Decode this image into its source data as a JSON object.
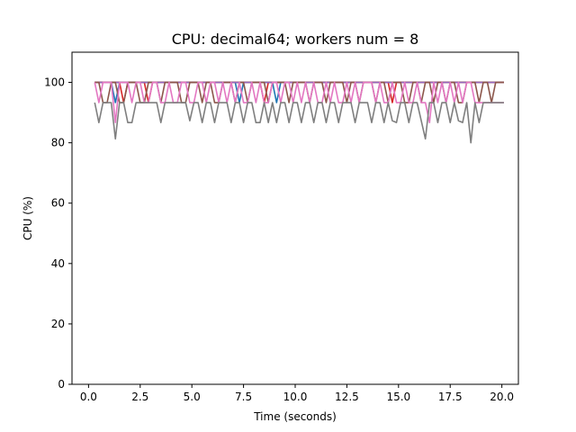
{
  "chart_data": {
    "type": "line",
    "title": "CPU: decimal64; workers num = 8",
    "xlabel": "Time (seconds)",
    "ylabel": "CPU (%)",
    "xlim": [
      -0.8,
      20.8
    ],
    "ylim": [
      0,
      110
    ],
    "xticks": [
      0.0,
      2.5,
      5.0,
      7.5,
      10.0,
      12.5,
      15.0,
      17.5,
      20.0
    ],
    "xtick_labels": [
      "0.0",
      "2.5",
      "5.0",
      "7.5",
      "10.0",
      "12.5",
      "15.0",
      "17.5",
      "20.0"
    ],
    "yticks": [
      0,
      20,
      40,
      60,
      80,
      100
    ],
    "ytick_labels": [
      "0",
      "20",
      "40",
      "60",
      "80",
      "100"
    ],
    "grid": false,
    "legend": "none",
    "x": [
      0.3,
      0.5,
      0.7,
      0.9,
      1.1,
      1.3,
      1.5,
      1.7,
      1.9,
      2.1,
      2.3,
      2.5,
      2.7,
      2.9,
      3.1,
      3.3,
      3.5,
      3.7,
      3.9,
      4.1,
      4.3,
      4.5,
      4.7,
      4.9,
      5.1,
      5.3,
      5.5,
      5.7,
      5.9,
      6.1,
      6.3,
      6.5,
      6.7,
      6.9,
      7.1,
      7.3,
      7.5,
      7.7,
      7.9,
      8.1,
      8.3,
      8.5,
      8.7,
      8.9,
      9.1,
      9.3,
      9.5,
      9.7,
      9.9,
      10.1,
      10.3,
      10.5,
      10.7,
      10.9,
      11.1,
      11.3,
      11.5,
      11.7,
      11.9,
      12.1,
      12.3,
      12.5,
      12.7,
      12.9,
      13.1,
      13.3,
      13.5,
      13.7,
      13.9,
      14.1,
      14.3,
      14.5,
      14.7,
      14.9,
      15.1,
      15.3,
      15.5,
      15.7,
      15.9,
      16.1,
      16.3,
      16.5,
      16.7,
      16.9,
      17.1,
      17.3,
      17.5,
      17.7,
      17.9,
      18.1,
      18.3,
      18.5,
      18.7,
      18.9,
      19.1,
      19.3,
      19.5,
      19.7,
      19.9,
      20.1
    ],
    "series": [
      {
        "color": "#1f77b4",
        "values": [
          100,
          100,
          100,
          100,
          100,
          93.3,
          100,
          100,
          100,
          100,
          100,
          100,
          100,
          100,
          100,
          100,
          100,
          100,
          100,
          100,
          100,
          100,
          100,
          100,
          100,
          100,
          100,
          100,
          100,
          100,
          100,
          100,
          100,
          100,
          100,
          93.3,
          100,
          100,
          100,
          100,
          100,
          100,
          100,
          100,
          93.3,
          100,
          100,
          100,
          100,
          100,
          100,
          100,
          100,
          100,
          100,
          100,
          100,
          100,
          100,
          100,
          100,
          100,
          100,
          100,
          100,
          100,
          100,
          100,
          100,
          100,
          100,
          100,
          100,
          100,
          100,
          100,
          100,
          100,
          100,
          100,
          100,
          100,
          100,
          100,
          100,
          100,
          100,
          100,
          100,
          100,
          100,
          100,
          100,
          100,
          100,
          100,
          100,
          100,
          100,
          100
        ]
      },
      {
        "color": "#ff7f0e",
        "values": [
          100,
          100,
          100,
          100,
          100,
          100,
          100,
          100,
          100,
          100,
          100,
          100,
          100,
          100,
          100,
          100,
          100,
          100,
          100,
          100,
          100,
          100,
          100,
          100,
          100,
          100,
          100,
          100,
          100,
          100,
          100,
          100,
          100,
          100,
          100,
          100,
          100,
          100,
          100,
          100,
          100,
          100,
          100,
          100,
          100,
          100,
          100,
          100,
          100,
          100,
          100,
          100,
          100,
          100,
          100,
          100,
          100,
          100,
          100,
          100,
          100,
          100,
          100,
          100,
          100,
          100,
          100,
          100,
          100,
          100,
          100,
          100,
          100,
          100,
          100,
          100,
          100,
          100,
          100,
          100,
          100,
          100,
          100,
          100,
          100,
          100,
          100,
          100,
          100,
          100,
          100,
          100,
          100,
          100,
          100,
          100,
          100,
          100,
          100,
          100
        ]
      },
      {
        "color": "#2ca02c",
        "values": [
          100,
          100,
          100,
          100,
          100,
          100,
          100,
          100,
          100,
          100,
          100,
          100,
          100,
          100,
          100,
          100,
          100,
          100,
          100,
          100,
          100,
          100,
          100,
          100,
          100,
          100,
          100,
          100,
          100,
          100,
          100,
          100,
          100,
          100,
          100,
          100,
          100,
          100,
          100,
          100,
          100,
          100,
          100,
          100,
          100,
          100,
          100,
          100,
          100,
          100,
          100,
          100,
          100,
          100,
          100,
          100,
          100,
          100,
          100,
          100,
          100,
          100,
          100,
          100,
          100,
          100,
          100,
          100,
          100,
          100,
          100,
          100,
          100,
          100,
          100,
          100,
          100,
          100,
          100,
          100,
          100,
          100,
          100,
          100,
          100,
          100,
          100,
          100,
          100,
          100,
          100,
          100,
          100,
          100,
          100,
          100,
          100,
          100,
          100,
          100
        ]
      },
      {
        "color": "#d62728",
        "values": [
          100,
          100,
          100,
          100,
          100,
          100,
          100,
          93.3,
          100,
          100,
          100,
          100,
          100,
          93.3,
          100,
          100,
          100,
          100,
          100,
          100,
          100,
          100,
          100,
          100,
          100,
          100,
          100,
          100,
          100,
          100,
          100,
          100,
          100,
          100,
          100,
          100,
          100,
          100,
          100,
          100,
          100,
          93.3,
          100,
          100,
          100,
          100,
          100,
          100,
          100,
          100,
          100,
          100,
          100,
          100,
          100,
          100,
          100,
          100,
          100,
          100,
          100,
          100,
          100,
          100,
          100,
          100,
          100,
          100,
          100,
          100,
          100,
          100,
          93.3,
          100,
          100,
          100,
          100,
          100,
          100,
          100,
          100,
          100,
          100,
          100,
          100,
          100,
          100,
          100,
          100,
          100,
          100,
          100,
          100,
          100,
          100,
          100,
          100,
          100,
          100,
          100
        ]
      },
      {
        "color": "#9467bd",
        "values": [
          100,
          100,
          100,
          100,
          100,
          100,
          100,
          100,
          100,
          100,
          100,
          100,
          100,
          100,
          100,
          100,
          100,
          100,
          100,
          100,
          100,
          100,
          100,
          100,
          100,
          100,
          100,
          100,
          100,
          100,
          100,
          100,
          100,
          100,
          100,
          100,
          100,
          100,
          100,
          100,
          100,
          100,
          100,
          100,
          100,
          100,
          100,
          100,
          100,
          100,
          100,
          100,
          100,
          100,
          100,
          100,
          100,
          100,
          100,
          100,
          100,
          100,
          100,
          100,
          100,
          100,
          100,
          100,
          100,
          100,
          100,
          100,
          100,
          100,
          100,
          100,
          100,
          100,
          100,
          100,
          100,
          100,
          100,
          100,
          100,
          100,
          100,
          100,
          100,
          100,
          100,
          100,
          100,
          100,
          100,
          100,
          100,
          100,
          100,
          100
        ]
      },
      {
        "color": "#8c564b",
        "values": [
          100,
          100,
          93.3,
          93.3,
          100,
          100,
          93.3,
          93.3,
          100,
          100,
          100,
          93.3,
          93.3,
          100,
          100,
          100,
          93.3,
          100,
          100,
          100,
          100,
          93.3,
          93.3,
          100,
          100,
          100,
          93.3,
          100,
          100,
          93.3,
          93.3,
          100,
          100,
          100,
          93.3,
          100,
          100,
          93.3,
          100,
          100,
          100,
          100,
          93.3,
          100,
          100,
          100,
          100,
          93.3,
          100,
          100,
          100,
          100,
          93.3,
          100,
          100,
          100,
          93.3,
          100,
          100,
          100,
          100,
          93.3,
          100,
          100,
          93.3,
          100,
          100,
          100,
          93.3,
          100,
          100,
          93.3,
          100,
          100,
          100,
          93.3,
          93.3,
          100,
          100,
          93.3,
          100,
          100,
          93.3,
          100,
          100,
          93.3,
          100,
          100,
          93.3,
          93.3,
          100,
          100,
          100,
          93.3,
          100,
          100,
          93.3,
          100,
          100,
          100
        ]
      },
      {
        "color": "#e377c2",
        "values": [
          100,
          93.3,
          100,
          100,
          100,
          86.7,
          100,
          100,
          100,
          93.3,
          100,
          100,
          93.3,
          93.3,
          100,
          100,
          93.3,
          93.3,
          100,
          93.3,
          93.3,
          100,
          100,
          93.3,
          93.3,
          100,
          100,
          93.3,
          100,
          100,
          93.3,
          100,
          93.3,
          100,
          93.3,
          100,
          93.3,
          93.3,
          100,
          93.3,
          100,
          93.3,
          93.3,
          100,
          100,
          93.3,
          100,
          100,
          93.3,
          100,
          93.3,
          100,
          93.3,
          100,
          93.3,
          93.3,
          100,
          93.3,
          100,
          93.3,
          93.3,
          100,
          93.3,
          100,
          93.3,
          100,
          100,
          100,
          93.3,
          100,
          93.3,
          93.3,
          100,
          93.3,
          93.3,
          100,
          93.3,
          93.3,
          100,
          93.3,
          93.3,
          86.7,
          100,
          93.3,
          100,
          93.3,
          100,
          93.3,
          100,
          93.3,
          100,
          100,
          93.3,
          93.3,
          93.3,
          93.3,
          93.3,
          93.3,
          93.3,
          93.3
        ]
      },
      {
        "color": "#7f7f7f",
        "values": [
          93.3,
          86.7,
          93.3,
          93.3,
          93.3,
          81.3,
          93.3,
          93.3,
          86.7,
          86.7,
          93.3,
          93.3,
          93.3,
          93.3,
          93.3,
          93.3,
          86.7,
          93.3,
          93.3,
          93.3,
          93.3,
          93.3,
          93.3,
          87.3,
          93.3,
          93.3,
          86.7,
          93.3,
          93.3,
          86.7,
          93.3,
          93.3,
          93.3,
          86.7,
          93.3,
          93.3,
          86.7,
          93.3,
          93.3,
          86.7,
          86.7,
          93.3,
          86.7,
          93.3,
          86.7,
          93.3,
          93.3,
          86.7,
          93.3,
          93.3,
          86.7,
          93.3,
          93.3,
          86.7,
          93.3,
          93.3,
          86.7,
          93.3,
          93.3,
          86.7,
          93.3,
          93.3,
          93.3,
          86.7,
          93.3,
          93.3,
          93.3,
          86.7,
          93.3,
          93.3,
          86.7,
          93.3,
          87.3,
          86.7,
          93.3,
          93.3,
          86.7,
          93.3,
          93.3,
          87.3,
          81.3,
          93.3,
          93.3,
          86.7,
          93.3,
          93.3,
          86.7,
          93.3,
          87.3,
          86.7,
          93.3,
          80.0,
          93.3,
          86.7,
          93.3,
          93.3,
          93.3,
          93.3,
          93.3,
          93.3
        ]
      }
    ]
  }
}
